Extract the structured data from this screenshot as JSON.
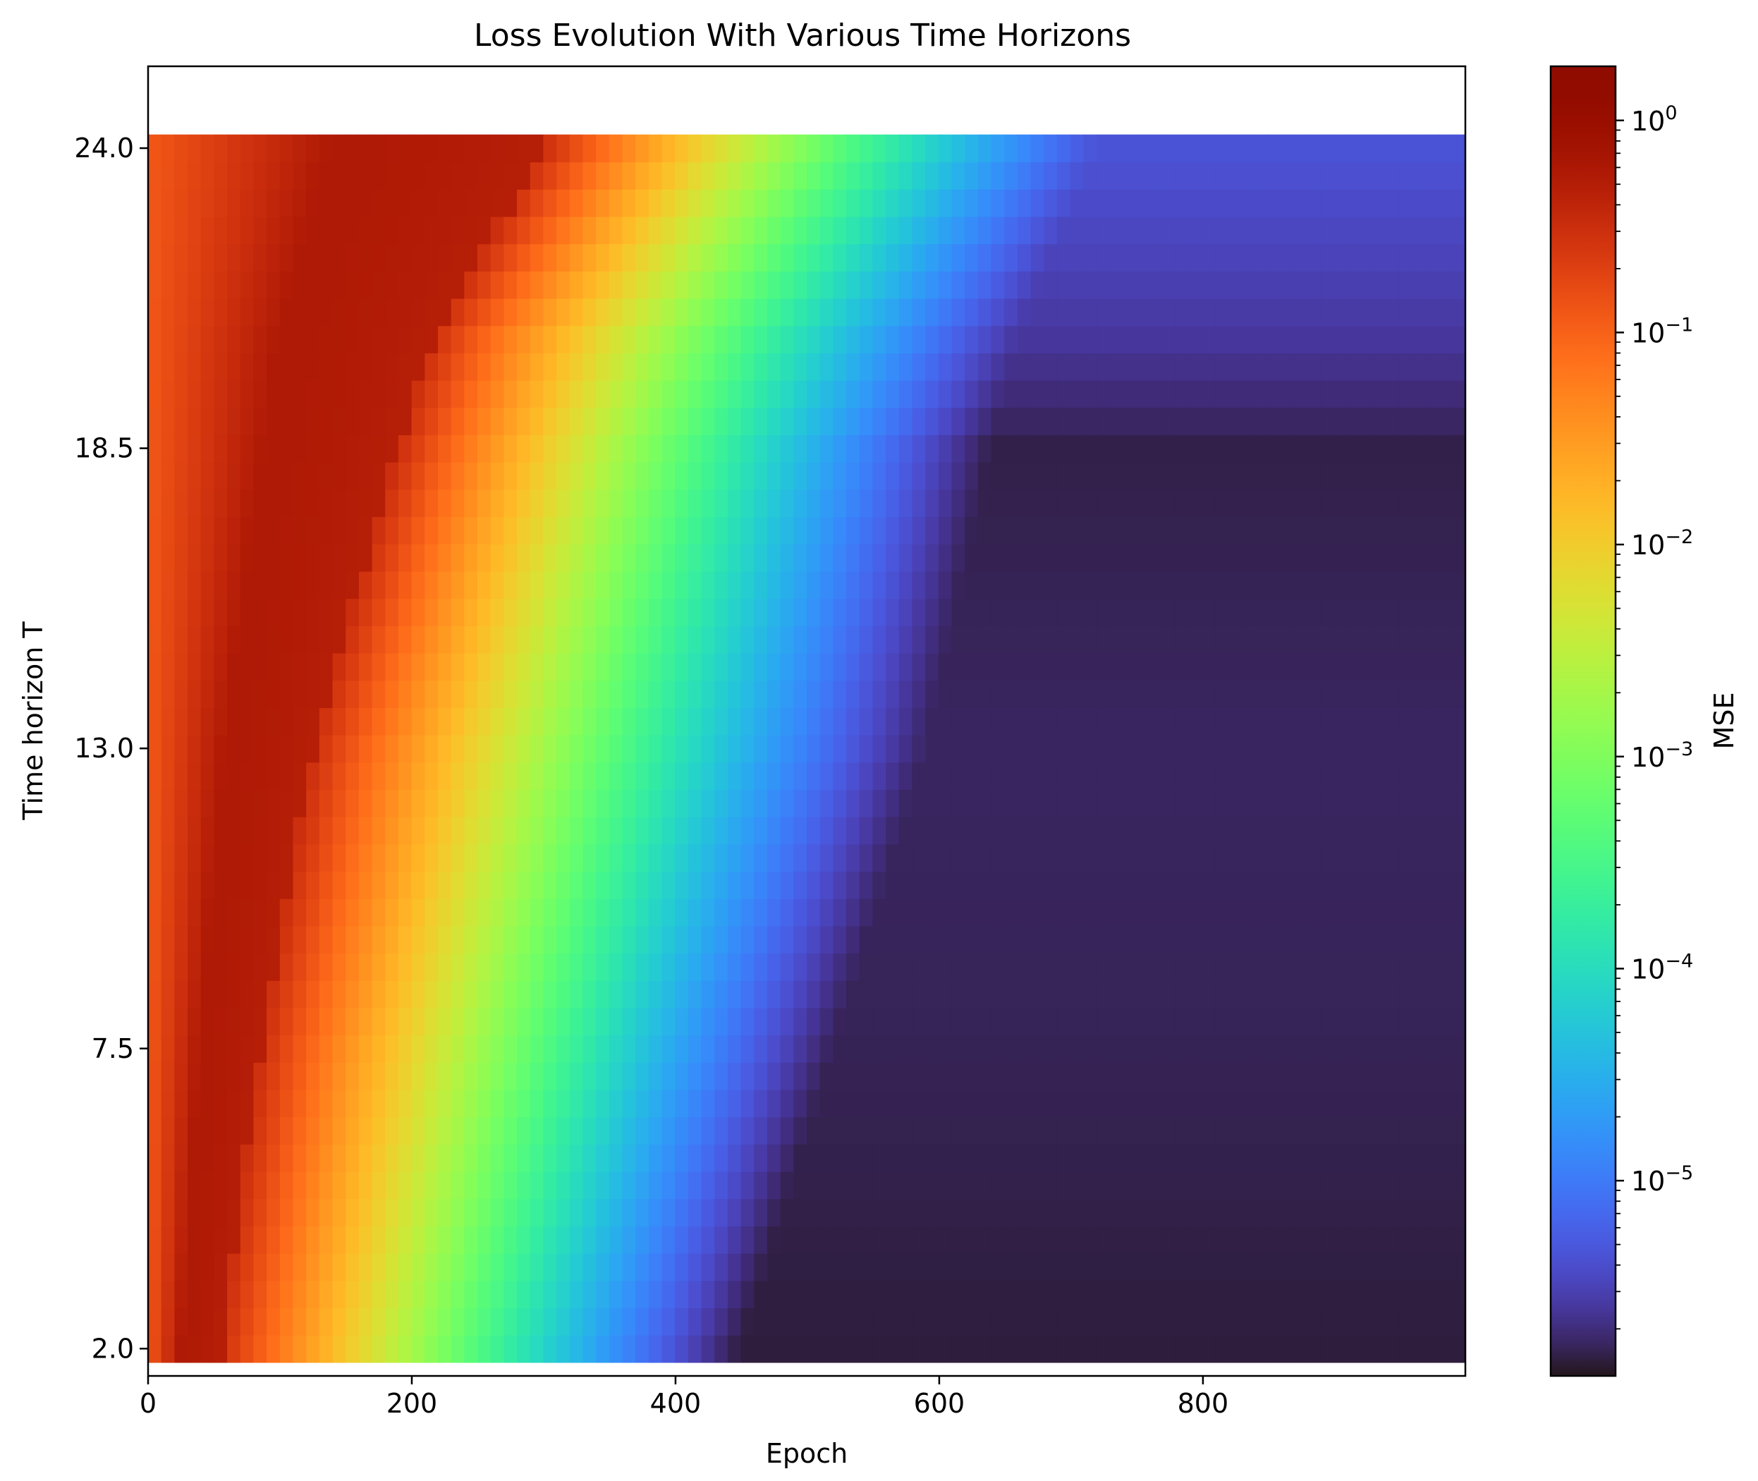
{
  "chart_data": {
    "type": "heatmap",
    "title": "Loss Evolution With Various Time Horizons",
    "xlabel": "Epoch",
    "ylabel": "Time horizon T",
    "colorbar_label": "MSE",
    "colormap": "turbo",
    "color_scale": "log",
    "xlim": [
      0,
      999
    ],
    "ylim": [
      1.5,
      25.5
    ],
    "color_range": [
      1.2e-06,
      1.8
    ],
    "x_ticks": [
      0,
      200,
      400,
      600,
      800
    ],
    "x_tick_labels": [
      "0",
      "200",
      "400",
      "600",
      "800"
    ],
    "y_ticks": [
      2.0,
      7.5,
      13.0,
      18.5,
      24.0
    ],
    "y_tick_labels": [
      "2.0",
      "7.5",
      "13.0",
      "18.5",
      "24.0"
    ],
    "colorbar_ticks": [
      1,
      0.1,
      0.01,
      0.001,
      0.0001,
      1e-05
    ],
    "colorbar_tick_labels": [
      {
        "base": "10",
        "exp": "0"
      },
      {
        "base": "10",
        "exp": "−1"
      },
      {
        "base": "10",
        "exp": "−2"
      },
      {
        "base": "10",
        "exp": "−3"
      },
      {
        "base": "10",
        "exp": "−4"
      },
      {
        "base": "10",
        "exp": "−5"
      }
    ],
    "epochs": [
      0,
      999
    ],
    "horizons": [
      2,
      24
    ],
    "initial_mse": 0.12,
    "peak_mse": 0.55,
    "rows": [
      {
        "T": 2.0,
        "plateau_end_epoch": 55,
        "floor_reached_epoch": 450,
        "floor_mse": 1.4e-06
      },
      {
        "T": 7.5,
        "plateau_end_epoch": 85,
        "floor_reached_epoch": 520,
        "floor_mse": 1.6e-06
      },
      {
        "T": 13.0,
        "plateau_end_epoch": 125,
        "floor_reached_epoch": 590,
        "floor_mse": 1.7e-06
      },
      {
        "T": 18.5,
        "plateau_end_epoch": 190,
        "floor_reached_epoch": 640,
        "floor_mse": 1.5e-06
      },
      {
        "T": 20.5,
        "plateau_end_epoch": 215,
        "floor_reached_epoch": 660,
        "floor_mse": 2.5e-06
      },
      {
        "T": 24.0,
        "plateau_end_epoch": 300,
        "floor_reached_epoch": 720,
        "floor_mse": 4.5e-06
      }
    ]
  }
}
